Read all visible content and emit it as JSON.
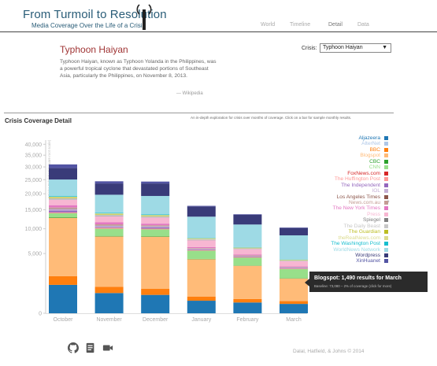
{
  "header": {
    "title": "From Turmoil to Resolution",
    "subtitle": "Media Coverage Over the Life of a Crisis",
    "nav": [
      {
        "label": "World",
        "active": false
      },
      {
        "label": "Timeline",
        "active": false
      },
      {
        "label": "Detail",
        "active": true
      },
      {
        "label": "Data",
        "active": false
      }
    ]
  },
  "crisis": {
    "title": "Typhoon Haiyan",
    "description": "Typhoon Haiyan, known as Typhoon Yolanda in the Philippines, was a powerful tropical cyclone that devastated portions of Southeast Asia, particularly the Philippines, on November 8, 2013.",
    "credit": "— Wikipedia",
    "select_label": "Crisis:",
    "select_value": "Typhoon Haiyan"
  },
  "detail": {
    "title": "Crisis Coverage Detail",
    "blurb": "An in-depth exploration for crisis over months of coverage. Click on a bar for sample monthly results."
  },
  "chart_data": {
    "type": "bar",
    "stacked": true,
    "title": "Crisis Coverage Detail",
    "ylabel": "Articles Published (square root scale)",
    "yscale": "sqrt",
    "ylim": [
      0,
      42000
    ],
    "yticks": [
      0,
      5000,
      10000,
      15000,
      20000,
      25000,
      30000,
      35000,
      40000
    ],
    "ytick_labels": [
      "0",
      "5,000",
      "10,000",
      "15,000",
      "20,000",
      "25,000",
      "30,000",
      "35,000",
      "40,000"
    ],
    "categories": [
      "October",
      "November",
      "December",
      "January",
      "February",
      "March"
    ],
    "series": [
      {
        "name": "Aljazeera",
        "color": "#1f77b4",
        "values": [
          1130,
          574,
          473,
          221,
          163,
          123
        ]
      },
      {
        "name": "AlterNet",
        "color": "#aec7e8",
        "values": [
          0,
          0,
          0,
          0,
          0,
          0
        ]
      },
      {
        "name": "BBC",
        "color": "#ff7f0e",
        "values": [
          802,
          404,
          360,
          172,
          125,
          84
        ]
      },
      {
        "name": "Blogspot",
        "color": "#ffbb78",
        "values": [
          10830,
          7290,
          7390,
          3700,
          2870,
          1490
        ]
      },
      {
        "name": "CBC",
        "color": "#2ca02c",
        "values": [
          150,
          110,
          100,
          50,
          40,
          25
        ]
      },
      {
        "name": "CNN",
        "color": "#98df8a",
        "values": [
          1100,
          1630,
          1540,
          1340,
          1140,
          1020
        ]
      },
      {
        "name": "FoxNews.com",
        "color": "#d62728",
        "values": [
          50,
          40,
          30,
          20,
          15,
          10
        ]
      },
      {
        "name": "The Huffington Post",
        "color": "#ff9896",
        "values": [
          200,
          200,
          150,
          100,
          80,
          60
        ]
      },
      {
        "name": "The Independent",
        "color": "#9467bd",
        "values": [
          500,
          200,
          300,
          100,
          80,
          60
        ]
      },
      {
        "name": "IOL",
        "color": "#c5b0d5",
        "values": [
          500,
          300,
          250,
          120,
          90,
          60
        ]
      },
      {
        "name": "Los Angeles Times",
        "color": "#8c564b",
        "values": [
          100,
          80,
          60,
          30,
          20,
          10
        ]
      },
      {
        "name": "News.com.au",
        "color": "#c49c94",
        "values": [
          300,
          250,
          200,
          100,
          80,
          50
        ]
      },
      {
        "name": "The New York Times",
        "color": "#e377c2",
        "values": [
          700,
          500,
          400,
          200,
          150,
          100
        ]
      },
      {
        "name": "Press",
        "color": "#f7b6d2",
        "values": [
          1700,
          1560,
          1560,
          1320,
          900,
          700
        ]
      },
      {
        "name": "Spiegel",
        "color": "#7f7f7f",
        "values": [
          100,
          80,
          60,
          40,
          30,
          20
        ]
      },
      {
        "name": "The Daily Beast",
        "color": "#c7c7c7",
        "values": [
          400,
          350,
          300,
          200,
          150,
          100
        ]
      },
      {
        "name": "The Guardian",
        "color": "#bcbd22",
        "values": [
          200,
          150,
          150,
          80,
          60,
          40
        ]
      },
      {
        "name": "theRealNews.com",
        "color": "#dbdb8d",
        "values": [
          300,
          250,
          200,
          100,
          80,
          50
        ]
      },
      {
        "name": "The Washington Post",
        "color": "#17becf",
        "values": [
          200,
          150,
          150,
          80,
          60,
          40
        ]
      },
      {
        "name": "WorldNews Network",
        "color": "#9edae5",
        "values": [
          5800,
          5560,
          5600,
          5100,
          4900,
          4460
        ]
      },
      {
        "name": "Wordpress",
        "color": "#393b79",
        "values": [
          4520,
          3920,
          4320,
          2890,
          2560,
          1690
        ]
      },
      {
        "name": "XinHuanet",
        "color": "#5254a3",
        "values": [
          1450,
          800,
          700,
          200,
          150,
          100
        ]
      }
    ]
  },
  "tooltip": {
    "title": "Blogspot: 1,490 results for March",
    "subtitle": "Baseline: 73,080 – 2% of coverage (click for more)"
  },
  "footer": {
    "icons": [
      "github-icon",
      "document-icon",
      "video-icon"
    ],
    "credit": "Dalal, Hatfield, & Johns © 2014"
  }
}
